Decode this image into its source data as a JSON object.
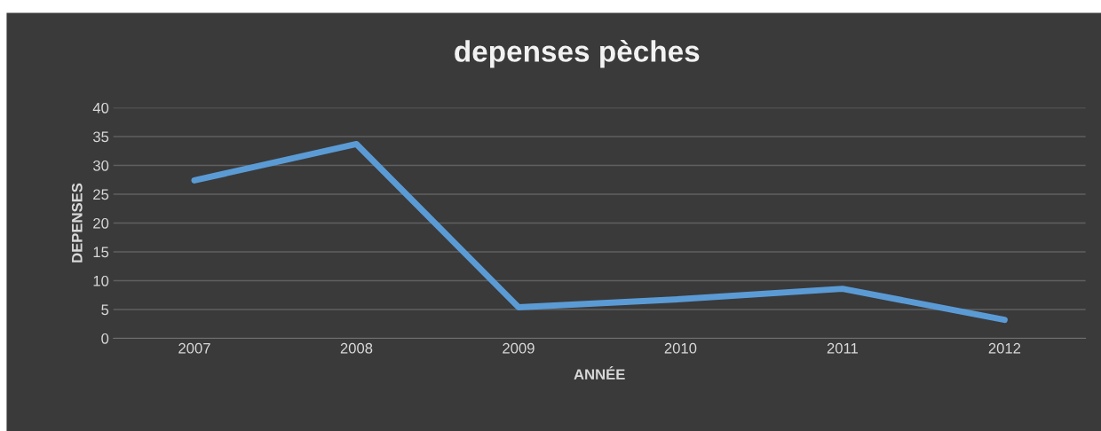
{
  "chart_data": {
    "type": "line",
    "title": "depenses pèches",
    "xlabel": "ANNÉE",
    "ylabel": "DEPENSES",
    "categories": [
      "2007",
      "2008",
      "2009",
      "2010",
      "2011",
      "2012"
    ],
    "series": [
      {
        "color": "#5b9bd5",
        "values": [
          27.4,
          33.7,
          5.4,
          6.8,
          8.6,
          3.2
        ]
      }
    ],
    "ylim": [
      0,
      40
    ],
    "yticks": [
      0,
      5,
      10,
      15,
      20,
      25,
      30,
      35,
      40
    ],
    "grid": "y",
    "marker": "none",
    "line_style": "solid"
  }
}
